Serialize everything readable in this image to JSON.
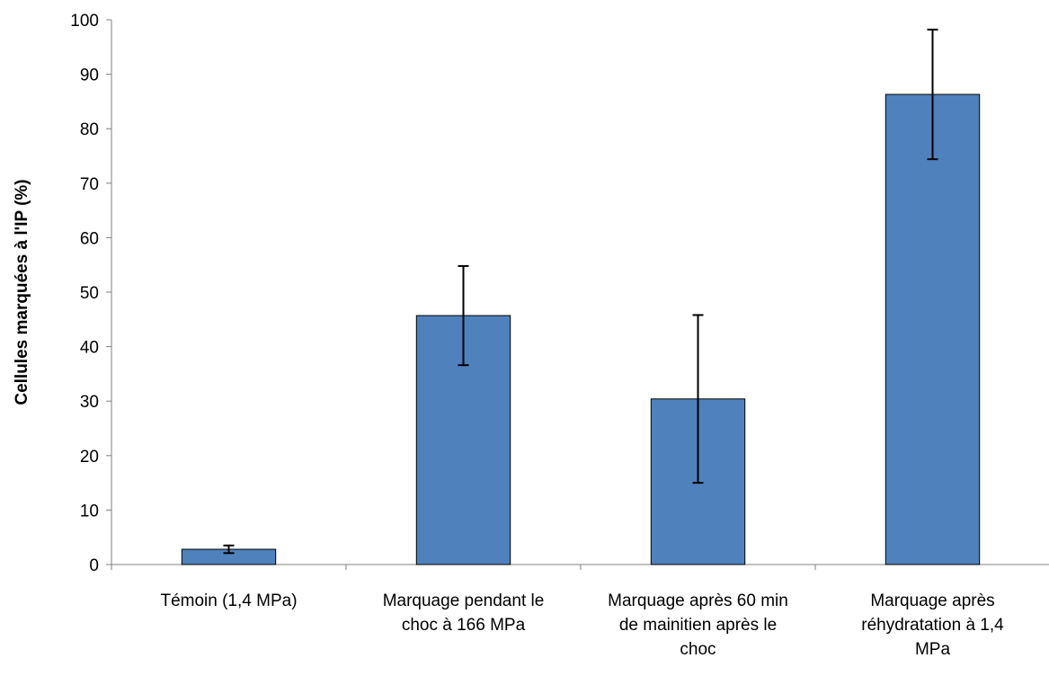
{
  "chart_data": {
    "type": "bar",
    "title": "",
    "xlabel": "",
    "ylabel": "Cellules marquées à l'IP (%)",
    "ylim": [
      0,
      100
    ],
    "yticks": [
      0,
      10,
      20,
      30,
      40,
      50,
      60,
      70,
      80,
      90,
      100
    ],
    "grid": false,
    "legend": "none",
    "categories": [
      [
        "Témoin (1,4 MPa)"
      ],
      [
        "Marquage pendant le",
        "choc à 166 MPa"
      ],
      [
        "Marquage après 60 min",
        "de mainitien après le",
        "choc"
      ],
      [
        "Marquage après",
        "réhydratation à 1,4",
        "MPa"
      ]
    ],
    "series": [
      {
        "values": [
          2.8,
          45.7,
          30.4,
          86.3
        ],
        "error_low": [
          2.1,
          36.6,
          15.0,
          74.4
        ],
        "error_high": [
          3.5,
          54.8,
          45.8,
          98.2
        ],
        "color": "#4F81BD"
      }
    ]
  }
}
